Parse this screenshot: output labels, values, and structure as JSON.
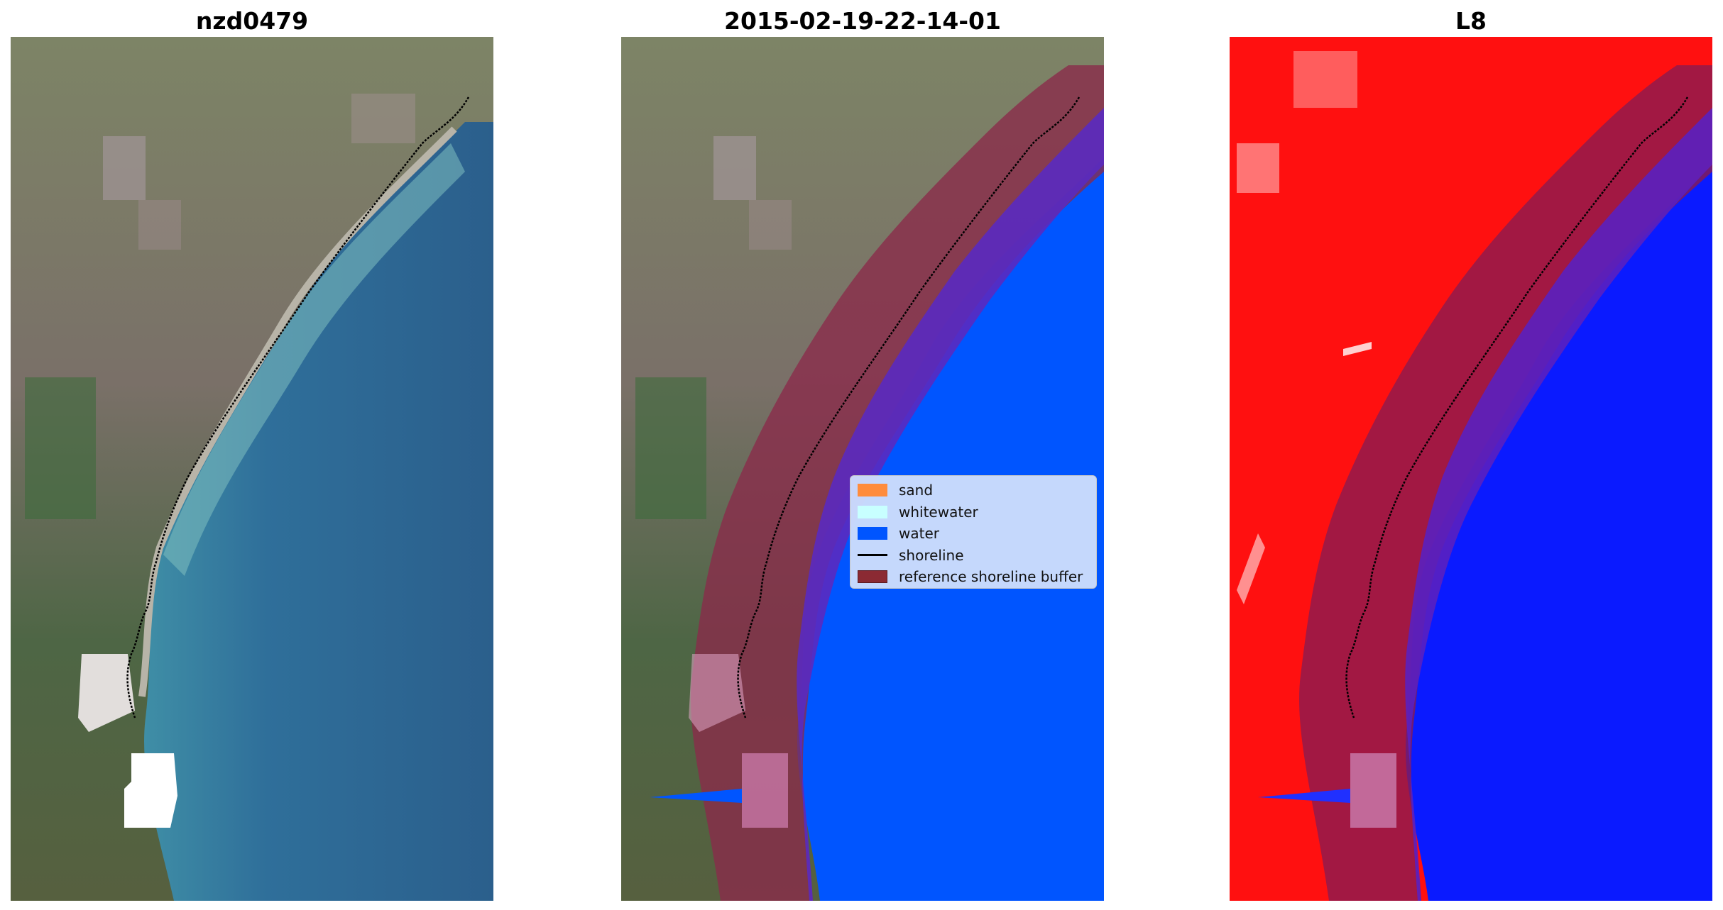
{
  "panels": [
    {
      "title": "nzd0479"
    },
    {
      "title": "2015-02-19-22-14-01"
    },
    {
      "title": "L8"
    }
  ],
  "legend": [
    {
      "label": "sand",
      "color": "#ff8c3c"
    },
    {
      "label": "whitewater",
      "color": "#c8ffff"
    },
    {
      "label": "water",
      "color": "#0055ff"
    },
    {
      "label": "shoreline",
      "color": "#000000"
    },
    {
      "label": "reference shoreline buffer",
      "color": "#8b2a33"
    }
  ],
  "colors": {
    "ocean": "#2e6a96",
    "land": "#7a7468",
    "water_class": "#0055ff",
    "buffer": "#8b2a4a",
    "ir_land": "#ff1010",
    "ir_water": "#0a1aff"
  }
}
